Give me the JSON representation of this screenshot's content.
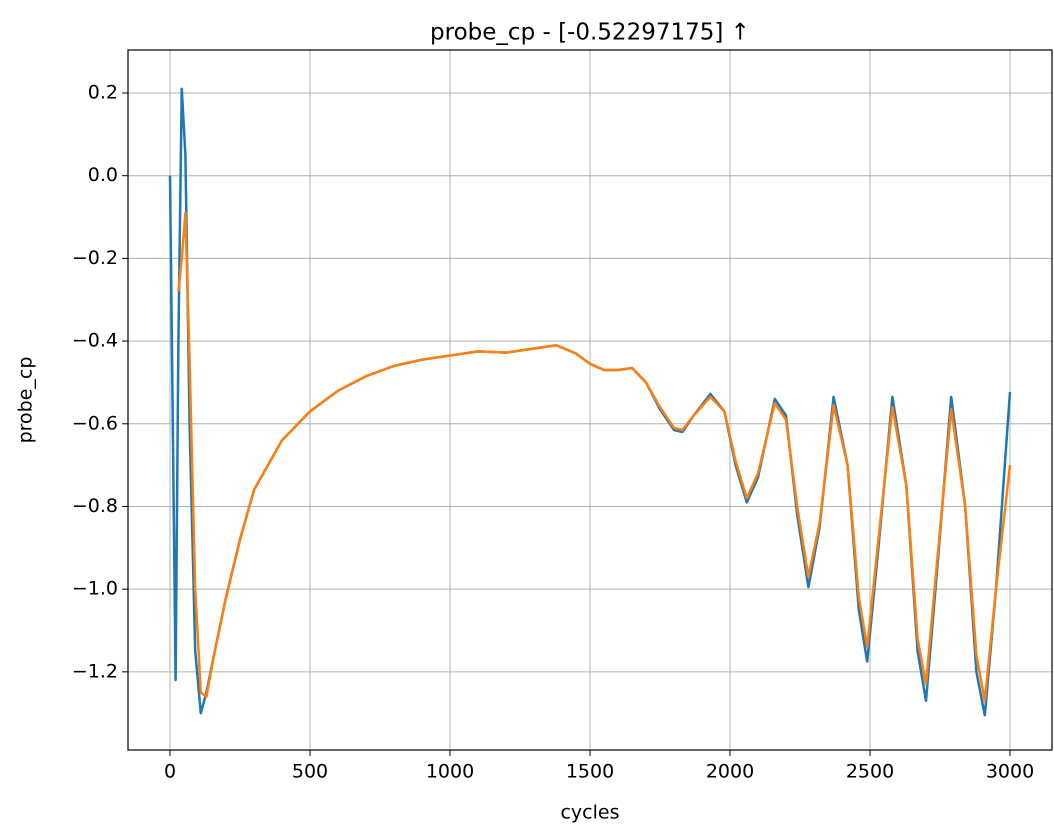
{
  "chart_data": {
    "type": "line",
    "title": "probe_cp - [-0.52297175]  ↑",
    "xlabel": "cycles",
    "ylabel": "probe_cp",
    "x": [
      0,
      10,
      20,
      30,
      42,
      55,
      70,
      90,
      110,
      130,
      160,
      200,
      250,
      300,
      400,
      500,
      600,
      700,
      800,
      900,
      1000,
      1100,
      1200,
      1300,
      1380,
      1450,
      1500,
      1550,
      1600,
      1650,
      1700,
      1750,
      1800,
      1830,
      1870,
      1930,
      1980,
      2020,
      2060,
      2100,
      2160,
      2200,
      2240,
      2280,
      2320,
      2370,
      2420,
      2460,
      2490,
      2530,
      2580,
      2630,
      2670,
      2700,
      2740,
      2790,
      2840,
      2880,
      2910,
      2950,
      3000
    ],
    "series": [
      {
        "color": "#1f77b4",
        "values": [
          0.0,
          -0.6,
          -1.22,
          -0.4,
          0.21,
          0.05,
          -0.6,
          -1.15,
          -1.3,
          -1.25,
          -1.15,
          -1.02,
          -0.88,
          -0.76,
          -0.64,
          -0.57,
          -0.52,
          -0.485,
          -0.46,
          -0.445,
          -0.435,
          -0.425,
          -0.428,
          -0.418,
          -0.41,
          -0.43,
          -0.455,
          -0.47,
          -0.47,
          -0.465,
          -0.5,
          -0.565,
          -0.615,
          -0.62,
          -0.58,
          -0.528,
          -0.57,
          -0.7,
          -0.79,
          -0.73,
          -0.54,
          -0.58,
          -0.82,
          -0.995,
          -0.85,
          -0.535,
          -0.7,
          -1.05,
          -1.175,
          -0.9,
          -0.535,
          -0.75,
          -1.15,
          -1.27,
          -0.95,
          -0.535,
          -0.8,
          -1.2,
          -1.305,
          -1.0,
          -0.523
        ]
      },
      {
        "color": "#ff7f0e",
        "values": [
          null,
          null,
          null,
          -0.28,
          -0.2,
          -0.09,
          -0.45,
          -1.0,
          -1.25,
          -1.26,
          -1.15,
          -1.02,
          -0.88,
          -0.76,
          -0.64,
          -0.57,
          -0.52,
          -0.485,
          -0.46,
          -0.445,
          -0.435,
          -0.425,
          -0.428,
          -0.418,
          -0.41,
          -0.43,
          -0.455,
          -0.47,
          -0.47,
          -0.465,
          -0.5,
          -0.56,
          -0.61,
          -0.615,
          -0.58,
          -0.535,
          -0.57,
          -0.69,
          -0.78,
          -0.72,
          -0.55,
          -0.59,
          -0.8,
          -0.97,
          -0.84,
          -0.555,
          -0.7,
          -1.02,
          -1.14,
          -0.88,
          -0.56,
          -0.75,
          -1.12,
          -1.23,
          -0.93,
          -0.565,
          -0.8,
          -1.16,
          -1.27,
          -1.0,
          -0.7
        ]
      }
    ],
    "xlim": [
      -150,
      3150
    ],
    "ylim": [
      -1.389,
      0.304
    ],
    "xticks": [
      0,
      500,
      1000,
      1500,
      2000,
      2500,
      3000
    ],
    "yticks": [
      {
        "value": 0.2,
        "label": "0.2"
      },
      {
        "value": 0,
        "label": "0.0"
      },
      {
        "value": -0.2,
        "label": "−0.2"
      },
      {
        "value": -0.4,
        "label": "−0.4"
      },
      {
        "value": -0.6,
        "label": "−0.6"
      },
      {
        "value": -0.8,
        "label": "−0.8"
      },
      {
        "value": -1.0,
        "label": "−1.0"
      },
      {
        "value": -1.2,
        "label": "−1.2"
      }
    ],
    "grid": true
  }
}
